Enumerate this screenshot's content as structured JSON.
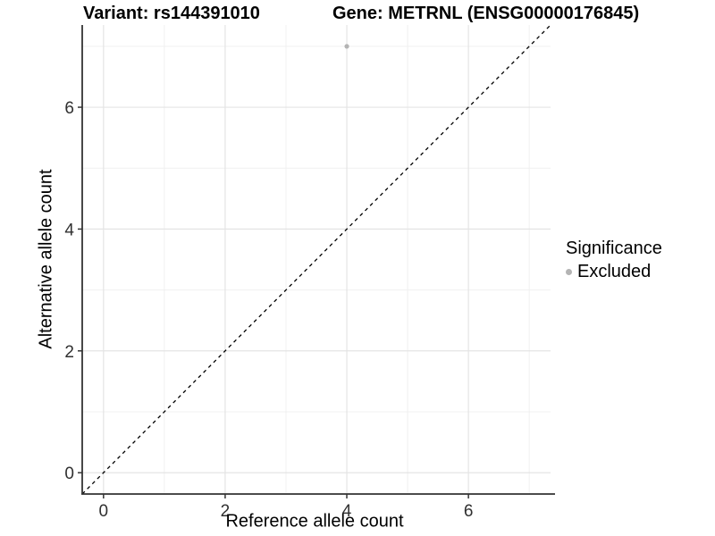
{
  "chart_data": {
    "type": "scatter",
    "titles": {
      "left": "Variant: rs144391010",
      "right": "Gene: METRNL (ENSG00000176845)"
    },
    "xlabel": "Reference allele count",
    "ylabel": "Alternative allele count",
    "xlim": [
      -0.35,
      7.35
    ],
    "ylim": [
      -0.35,
      7.35
    ],
    "x_ticks": [
      0,
      2,
      4,
      6
    ],
    "y_ticks": [
      0,
      2,
      4,
      6
    ],
    "grid_positions": [
      0,
      1,
      2,
      3,
      4,
      5,
      6,
      7
    ],
    "grid": true,
    "points": [
      {
        "x": 4,
        "y": 7,
        "series": "Excluded"
      }
    ],
    "reference_line": {
      "equation": "y=x",
      "style": "dashed",
      "color": "#000000"
    },
    "legend": {
      "position": "right",
      "title": "Significance",
      "items": [
        {
          "label": "Excluded",
          "color": "#b4b4b4"
        }
      ]
    },
    "colors": {
      "point": "#b4b4b4",
      "grid_major": "#e4e4e4",
      "grid_minor": "#f0f0f0",
      "axis_line": "#333333",
      "tick_label": "#303030",
      "background": "#ffffff"
    }
  }
}
